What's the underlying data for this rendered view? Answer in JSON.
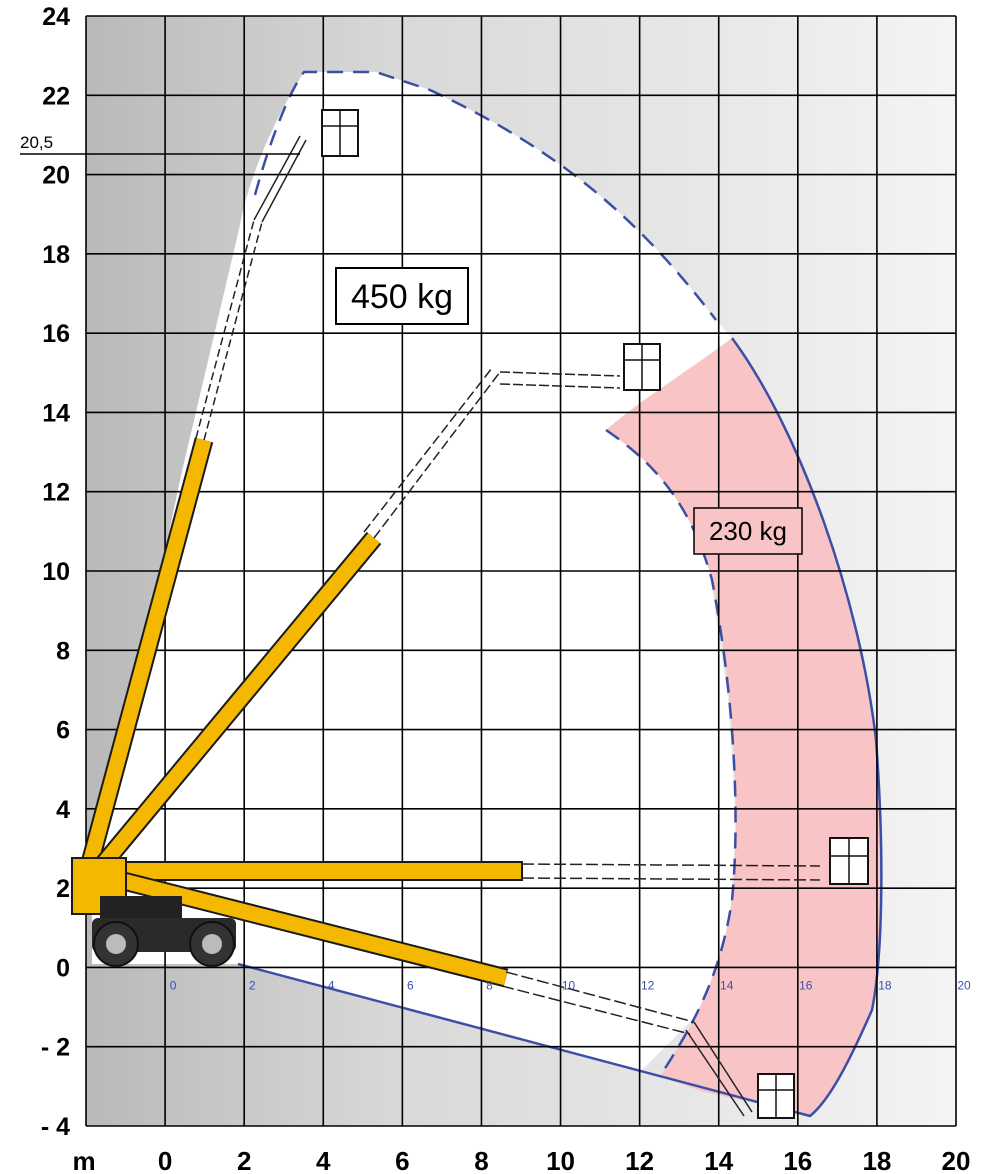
{
  "unit_label": "m",
  "marker": {
    "label": "20,5",
    "value": 20.5
  },
  "capacity_labels": {
    "main": "450 kg",
    "extended": "230 kg"
  },
  "inner_axis_ticks": [
    "0",
    "2",
    "4",
    "6",
    "8",
    "10",
    "12",
    "14",
    "16",
    "18",
    "20"
  ],
  "colors": {
    "boom_yellow": "#f5b800",
    "envelope_blue": "#3b4fa6",
    "zone_230_fill": "#f9c4c6",
    "grid_line": "#000000",
    "background_gray": "#cfcfcf"
  },
  "chart_data": {
    "type": "diagram",
    "x_ticks": [
      "0",
      "2",
      "4",
      "6",
      "8",
      "10",
      "12",
      "14",
      "16",
      "18",
      "20"
    ],
    "y_ticks": [
      "24",
      "22",
      "20",
      "18",
      "16",
      "14",
      "12",
      "10",
      "8",
      "6",
      "4",
      "2",
      "0",
      "- 2",
      "- 4"
    ],
    "xlim": [
      -2,
      20
    ],
    "ylim": [
      -4,
      24
    ],
    "grid": true,
    "max_platform_height": 20.5,
    "boom_positions": [
      {
        "name": "vertical",
        "tip": [
          4,
          20.5
        ]
      },
      {
        "name": "diagonal",
        "tip": [
          12,
          15
        ]
      },
      {
        "name": "horizontal",
        "tip": [
          17.5,
          2.3
        ]
      },
      {
        "name": "below-ground",
        "tip": [
          15.5,
          -3.3
        ]
      }
    ],
    "zones": [
      {
        "label": "450 kg"
      },
      {
        "label": "230 kg"
      }
    ]
  }
}
